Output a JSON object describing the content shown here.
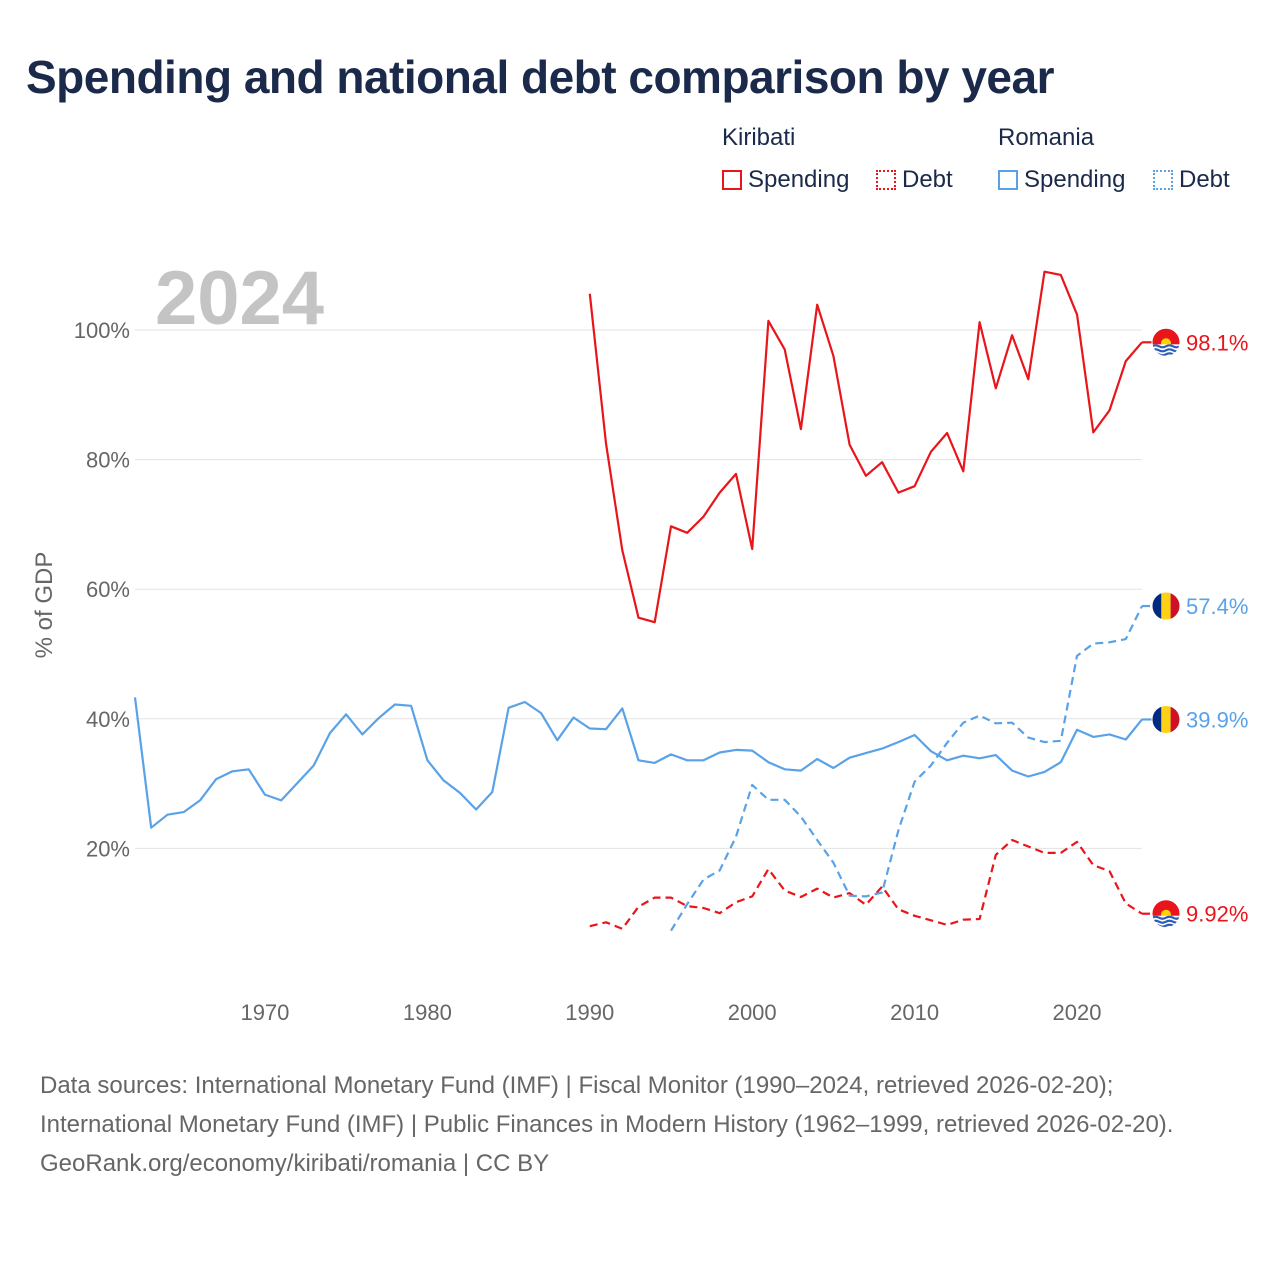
{
  "title": "Spending and national debt comparison by year",
  "legend": {
    "kiribati": {
      "country": "Kiribati",
      "spending_label": "Spending",
      "debt_label": "Debt",
      "color": "#e8151b"
    },
    "romania": {
      "country": "Romania",
      "spending_label": "Spending",
      "debt_label": "Debt",
      "color": "#5aa2e8"
    }
  },
  "chart_data": {
    "type": "line",
    "year_watermark": "2024",
    "ylabel": "% of GDP",
    "xlim": [
      1962,
      2024
    ],
    "ylim": [
      0,
      110
    ],
    "x_ticks": [
      1970,
      1980,
      1990,
      2000,
      2010,
      2020
    ],
    "x_tick_labels": [
      "1970",
      "1980",
      "1990",
      "2000",
      "2010",
      "2020"
    ],
    "y_ticks": [
      20,
      40,
      60,
      80,
      100
    ],
    "y_tick_labels": [
      "20%",
      "40%",
      "60%",
      "80%",
      "100%"
    ],
    "series": [
      {
        "name": "Kiribati Spending",
        "country": "Kiribati",
        "color": "#e8151b",
        "dash": false,
        "start_year": 1990,
        "values": [
          105.6,
          82.5,
          66.0,
          55.6,
          54.9,
          69.7,
          68.7,
          71.2,
          74.9,
          77.8,
          66.2,
          101.4,
          97.0,
          84.7,
          103.9,
          96.0,
          82.3,
          77.5,
          79.6,
          74.9,
          75.9,
          81.2,
          84.1,
          78.2,
          101.2,
          91.0,
          99.2,
          92.4,
          109.0,
          108.5,
          102.4,
          84.2,
          87.6,
          95.2,
          98.1
        ],
        "end_label": "98.1%"
      },
      {
        "name": "Kiribati Debt",
        "country": "Kiribati",
        "color": "#e8151b",
        "dash": true,
        "start_year": 1990,
        "values": [
          8.0,
          8.6,
          7.6,
          11.0,
          12.4,
          12.4,
          11.1,
          10.8,
          10.0,
          11.7,
          12.6,
          16.8,
          13.5,
          12.5,
          13.8,
          12.4,
          13.1,
          11.3,
          14.1,
          10.6,
          9.6,
          8.9,
          8.2,
          9.0,
          9.1,
          19.0,
          21.3,
          20.3,
          19.3,
          19.3,
          21.0,
          17.4,
          16.5,
          11.5,
          9.92
        ],
        "end_label": "9.92%"
      },
      {
        "name": "Romania Spending",
        "country": "Romania",
        "color": "#5aa2e8",
        "dash": false,
        "start_year": 1962,
        "values": [
          43.3,
          23.2,
          25.2,
          25.6,
          27.4,
          30.7,
          31.9,
          32.2,
          28.3,
          27.4,
          30.1,
          32.8,
          37.8,
          40.7,
          37.6,
          40.1,
          42.2,
          42.0,
          33.6,
          30.5,
          28.6,
          26.0,
          28.7,
          41.7,
          42.6,
          40.9,
          36.7,
          40.2,
          38.5,
          38.4,
          41.6,
          33.6,
          33.2,
          34.5,
          33.6,
          33.6,
          34.8,
          35.2,
          35.1,
          33.3,
          32.2,
          32.0,
          33.8,
          32.4,
          34.0,
          34.7,
          35.4,
          36.4,
          37.5,
          35.0,
          33.6,
          34.3,
          33.9,
          34.4,
          32.0,
          31.1,
          31.8,
          33.3,
          38.3,
          37.2,
          37.6,
          36.8,
          39.9
        ],
        "end_label": "39.9%"
      },
      {
        "name": "Romania Debt",
        "country": "Romania",
        "color": "#5aa2e8",
        "dash": true,
        "start_year": 1995,
        "values": [
          7.3,
          11.4,
          15.2,
          16.6,
          21.8,
          29.8,
          27.5,
          27.5,
          24.9,
          21.3,
          17.8,
          12.7,
          12.6,
          13.2,
          22.8,
          30.3,
          32.8,
          36.3,
          39.4,
          40.5,
          39.3,
          39.4,
          37.1,
          36.4,
          36.6,
          49.7,
          51.6,
          51.8,
          52.3,
          57.4
        ],
        "end_label": "57.4%"
      }
    ]
  },
  "flags": {
    "kiribati": {
      "top": "#e8151b",
      "sun": "#ffd200",
      "sea": "#ffffff",
      "wave": "#2a5cb8"
    },
    "romania": {
      "blue": "#002b7f",
      "yellow": "#fcd116",
      "red": "#ce1126"
    }
  },
  "source": {
    "line1": "Data sources: International Monetary Fund (IMF) | Fiscal Monitor (1990–2024, retrieved 2026-02-20); International Monetary Fund (IMF) | Public Finances in Modern History (1962–1999, retrieved 2026-02-20).",
    "line2": "GeoRank.org/economy/kiribati/romania | CC BY"
  }
}
